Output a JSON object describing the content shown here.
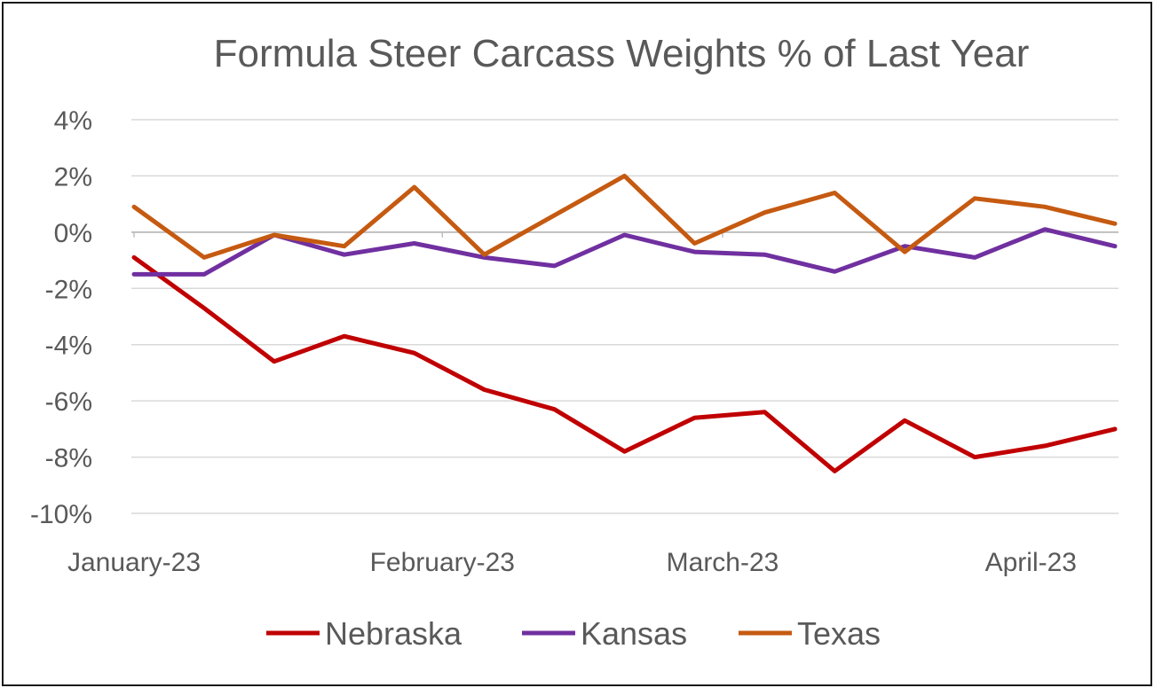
{
  "chart_data": {
    "type": "line",
    "title": "Formula Steer Carcass Weights % of Last Year",
    "xlabel": "",
    "ylabel": "",
    "ylim": [
      -10,
      4
    ],
    "y_ticks": [
      4,
      2,
      0,
      -2,
      -4,
      -6,
      -8,
      -10
    ],
    "y_tick_labels": [
      "4%",
      "2%",
      "0%",
      "-2%",
      "-4%",
      "-6%",
      "-8%",
      "-10%"
    ],
    "x_tick_labels": [
      {
        "label": "January-23",
        "index": 0
      },
      {
        "label": "February-23",
        "index": 4.4
      },
      {
        "label": "March-23",
        "index": 8.4
      },
      {
        "label": "April-23",
        "index": 12.8
      }
    ],
    "point_count": 15,
    "grid": true,
    "legend_position": "bottom",
    "series": [
      {
        "name": "Nebraska",
        "color": "#C00000",
        "values": [
          -0.9,
          -2.7,
          -4.6,
          -3.7,
          -4.3,
          -5.6,
          -6.3,
          -7.8,
          -6.6,
          -6.4,
          -8.5,
          -6.7,
          -8.0,
          -7.6,
          -7.0
        ]
      },
      {
        "name": "Kansas",
        "color": "#7030A0",
        "values": [
          -1.5,
          -1.5,
          -0.1,
          -0.8,
          -0.4,
          -0.9,
          -1.2,
          -0.1,
          -0.7,
          -0.8,
          -1.4,
          -0.5,
          -0.9,
          0.1,
          -0.5
        ]
      },
      {
        "name": "Texas",
        "color": "#C55A11",
        "values": [
          0.9,
          -0.9,
          -0.1,
          -0.5,
          1.6,
          -0.8,
          0.6,
          2.0,
          -0.4,
          0.7,
          1.4,
          -0.7,
          1.2,
          0.9,
          0.3
        ]
      }
    ]
  }
}
